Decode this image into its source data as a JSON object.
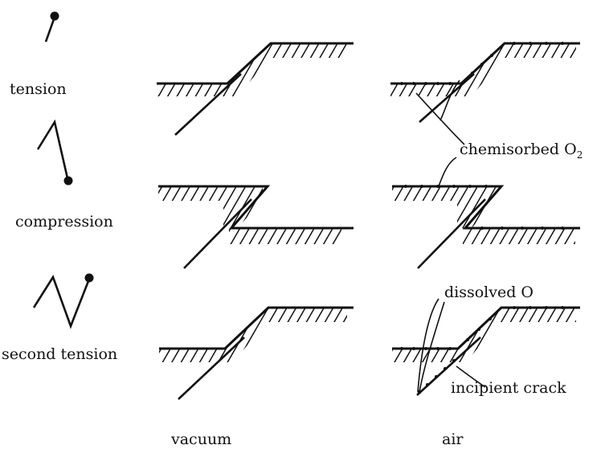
{
  "rows": [
    {
      "label": "tension"
    },
    {
      "label": "compression"
    },
    {
      "label": "second tension"
    }
  ],
  "columns": [
    {
      "label": "vacuum"
    },
    {
      "label": "air"
    }
  ],
  "annotations": {
    "chemisorbed": "chemisorbed O",
    "chemisorbed_sub": "2",
    "dissolved": "dissolved O",
    "crack": "incipient crack"
  }
}
